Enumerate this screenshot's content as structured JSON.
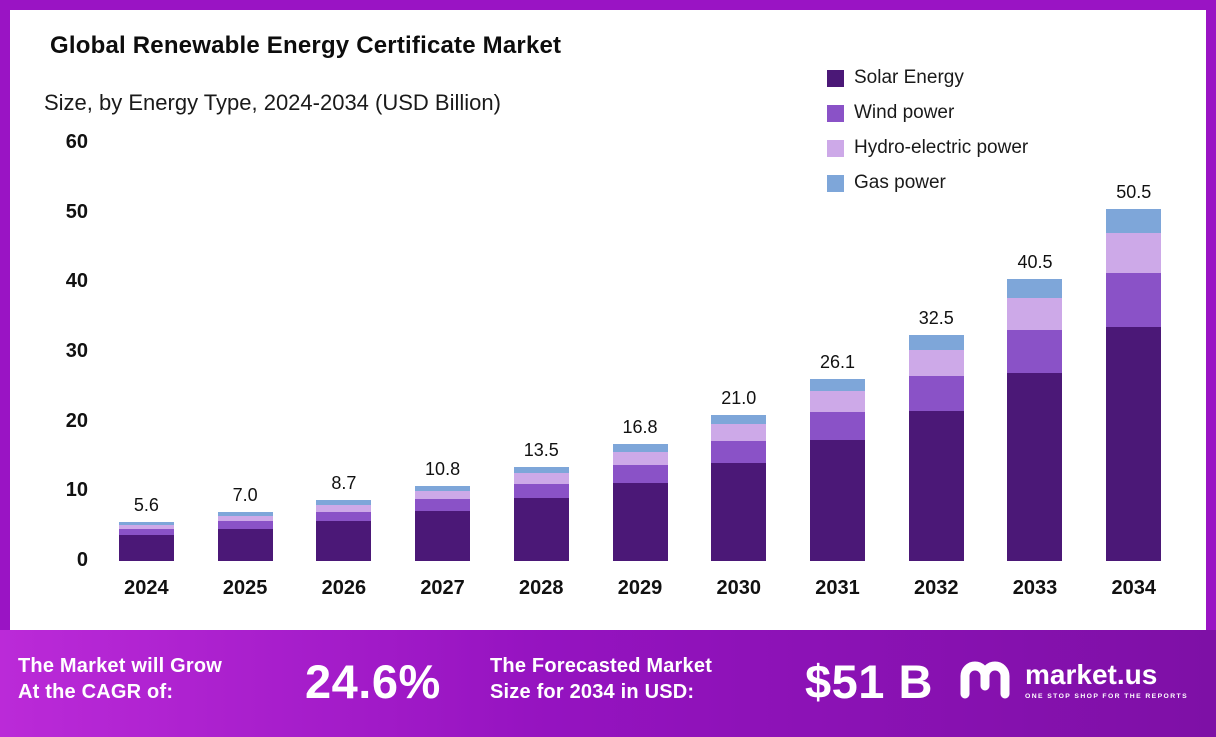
{
  "title": "Global Renewable Energy Certificate Market",
  "subtitle": "Size, by Energy Type, 2024-2034 (USD Billion)",
  "legend": [
    {
      "label": "Solar Energy",
      "color": "#4b1877"
    },
    {
      "label": "Wind power",
      "color": "#8a52c7"
    },
    {
      "label": "Hydro-electric power",
      "color": "#cda9e8"
    },
    {
      "label": "Gas power",
      "color": "#7ea6d9"
    }
  ],
  "chart_data": {
    "type": "bar",
    "stacked": true,
    "title": "Global Renewable Energy Certificate Market Size, by Energy Type, 2024-2034 (USD Billion)",
    "categories": [
      "2024",
      "2025",
      "2026",
      "2027",
      "2028",
      "2029",
      "2030",
      "2031",
      "2032",
      "2033",
      "2034"
    ],
    "series": [
      {
        "name": "Solar Energy",
        "color": "#4b1877",
        "values": [
          3.7,
          4.6,
          5.8,
          7.2,
          9.0,
          11.2,
          14.0,
          17.4,
          21.6,
          27.0,
          33.6
        ]
      },
      {
        "name": "Wind power",
        "color": "#8a52c7",
        "values": [
          0.9,
          1.1,
          1.3,
          1.7,
          2.1,
          2.6,
          3.2,
          4.0,
          5.0,
          6.2,
          7.8
        ]
      },
      {
        "name": "Hydro-electric power",
        "color": "#cda9e8",
        "values": [
          0.6,
          0.8,
          1.0,
          1.2,
          1.5,
          1.9,
          2.4,
          3.0,
          3.7,
          4.6,
          5.7
        ]
      },
      {
        "name": "Gas power",
        "color": "#7ea6d9",
        "values": [
          0.4,
          0.5,
          0.6,
          0.7,
          0.9,
          1.1,
          1.4,
          1.7,
          2.2,
          2.7,
          3.4
        ]
      }
    ],
    "totals": [
      5.6,
      7.0,
      8.7,
      10.8,
      13.5,
      16.8,
      21.0,
      26.1,
      32.5,
      40.5,
      50.5
    ],
    "total_labels": [
      "5.6",
      "7.0",
      "8.7",
      "10.8",
      "13.5",
      "16.8",
      "21.0",
      "26.1",
      "32.5",
      "40.5",
      "50.5"
    ],
    "xlabel": "",
    "ylabel": "",
    "ylim": [
      0,
      60
    ],
    "yticks": [
      0,
      10,
      20,
      30,
      40,
      50,
      60
    ],
    "grid": false,
    "legend_position": "top-right"
  },
  "footer": {
    "cagr_label_line1": "The Market will Grow",
    "cagr_label_line2": "At the CAGR of:",
    "cagr_value": "24.6%",
    "forecast_label_line1": "The Forecasted Market",
    "forecast_label_line2": "Size for 2034 in USD:",
    "forecast_value": "$51 B",
    "brand_name": "market.us",
    "brand_tagline": "ONE STOP SHOP FOR THE REPORTS"
  },
  "colors": {
    "frame_border": "#9a14c4",
    "footer_gradient_start": "#bb2ad8",
    "footer_gradient_end": "#7e10a6"
  }
}
